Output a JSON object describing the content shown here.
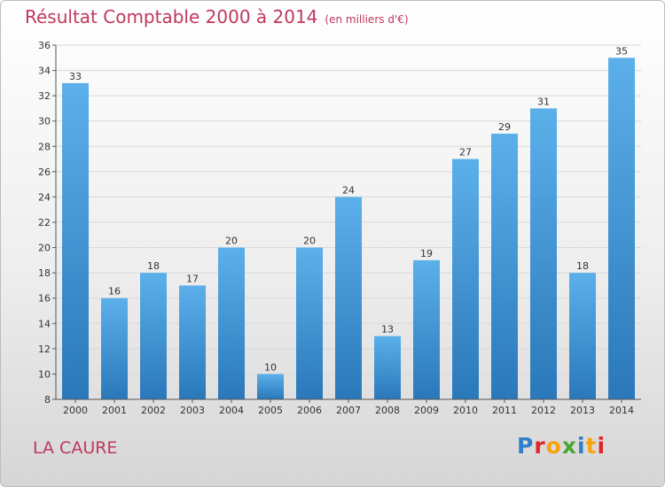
{
  "header": {
    "title": "Résultat Comptable 2000 à 2014",
    "subtitle": "(en milliers d'€)"
  },
  "footer": {
    "commune": "LA CAURE",
    "brand": "Proxiti"
  },
  "colors": {
    "title": "#c0385e",
    "bar_top": "#5cb0ea",
    "bar_bottom": "#2a78ba",
    "grid": "#d8d8d8"
  },
  "chart_data": {
    "type": "bar",
    "title": "Résultat Comptable 2000 à 2014",
    "subtitle": "(en milliers d'€)",
    "xlabel": "",
    "ylabel": "",
    "categories": [
      "2000",
      "2001",
      "2002",
      "2003",
      "2004",
      "2005",
      "2006",
      "2007",
      "2008",
      "2009",
      "2010",
      "2011",
      "2012",
      "2013",
      "2014"
    ],
    "values": [
      33,
      16,
      18,
      17,
      20,
      10,
      20,
      24,
      13,
      19,
      27,
      29,
      31,
      18,
      35
    ],
    "ylim": [
      8,
      36
    ],
    "yticks": [
      8,
      10,
      12,
      14,
      16,
      18,
      20,
      22,
      24,
      26,
      28,
      30,
      32,
      34,
      36
    ],
    "grid": true,
    "data_labels": true
  }
}
